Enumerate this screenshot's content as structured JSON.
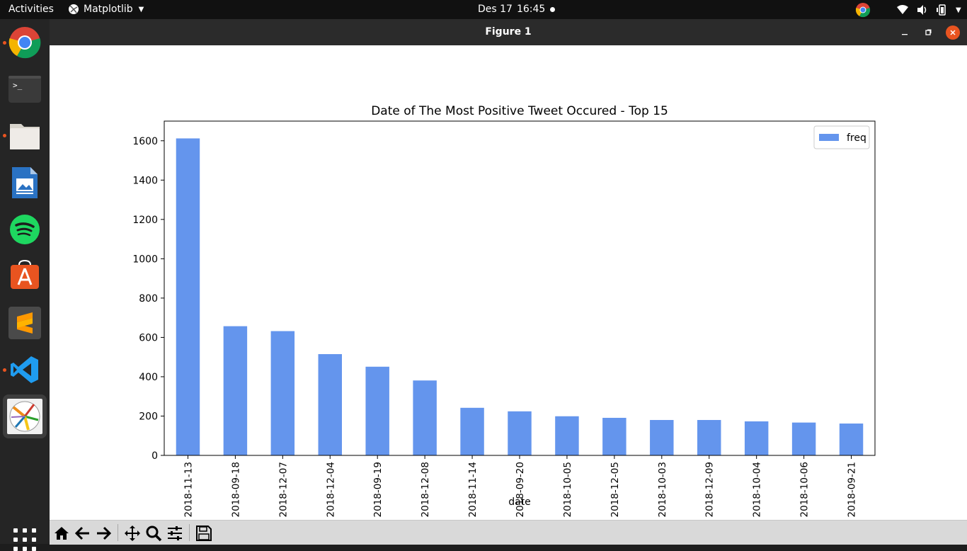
{
  "topbar": {
    "activities": "Activities",
    "app_name": "Matplotlib",
    "date": "Des 17",
    "time": "16:45"
  },
  "dock": {
    "items": [
      {
        "icon": "chrome-icon",
        "running": true
      },
      {
        "icon": "terminal-icon",
        "running": false
      },
      {
        "icon": "files-icon",
        "running": true
      },
      {
        "icon": "writer-icon",
        "running": false
      },
      {
        "icon": "spotify-icon",
        "running": false
      },
      {
        "icon": "software-store-icon",
        "running": false
      },
      {
        "icon": "sublime-text-icon",
        "running": false
      },
      {
        "icon": "vscode-icon",
        "running": true
      },
      {
        "icon": "matplotlib-icon",
        "running": true,
        "active": true
      }
    ],
    "show_apps_icon": "apps-grid-icon"
  },
  "window": {
    "title": "Figure 1"
  },
  "toolbar": {
    "buttons": [
      "home-icon",
      "back-icon",
      "forward-icon",
      "pan-icon",
      "zoom-icon",
      "configure-subplots-icon",
      "save-icon"
    ]
  },
  "colors": {
    "bar": "#6495ed",
    "accent": "#e95420"
  },
  "chart_data": {
    "type": "bar",
    "title": "Date of The Most Positive Tweet Occured - Top 15",
    "xlabel": "date",
    "ylabel": "",
    "ylim": [
      0,
      1700
    ],
    "yticks": [
      0,
      200,
      400,
      600,
      800,
      1000,
      1200,
      1400,
      1600
    ],
    "legend": {
      "entries": [
        "freq"
      ],
      "position": "top-right"
    },
    "grid": false,
    "categories": [
      "2018-11-13",
      "2018-09-18",
      "2018-12-07",
      "2018-12-04",
      "2018-09-19",
      "2018-12-08",
      "2018-11-14",
      "2018-09-20",
      "2018-10-05",
      "2018-12-05",
      "2018-10-03",
      "2018-12-09",
      "2018-10-04",
      "2018-10-06",
      "2018-09-21"
    ],
    "series": [
      {
        "name": "freq",
        "values": [
          1612,
          657,
          632,
          515,
          451,
          381,
          242,
          224,
          199,
          191,
          180,
          180,
          173,
          167,
          162
        ]
      }
    ]
  }
}
